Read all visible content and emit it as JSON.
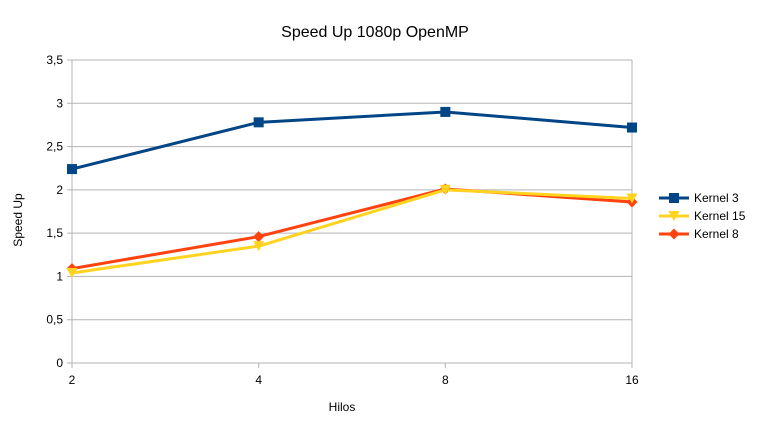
{
  "chart_data": {
    "type": "line",
    "title": "Speed Up 1080p OpenMP",
    "xlabel": "Hilos",
    "ylabel": "Speed Up",
    "categories": [
      "2",
      "4",
      "8",
      "16"
    ],
    "ylim": [
      0,
      3.5
    ],
    "yticks": [
      "0",
      "0,5",
      "1",
      "1,5",
      "2",
      "2,5",
      "3",
      "3,5"
    ],
    "grid": "horizontal",
    "legend_position": "right",
    "series": [
      {
        "name": "Kernel 3",
        "color": "#004586",
        "marker": "square",
        "values": [
          2.24,
          2.78,
          2.9,
          2.72
        ]
      },
      {
        "name": "Kernel 15",
        "color": "#ffd320",
        "marker": "triangle-down",
        "values": [
          1.04,
          1.35,
          2.0,
          1.9
        ]
      },
      {
        "name": "Kernel 8",
        "color": "#ff420e",
        "marker": "diamond",
        "values": [
          1.09,
          1.46,
          2.01,
          1.86
        ]
      }
    ]
  }
}
